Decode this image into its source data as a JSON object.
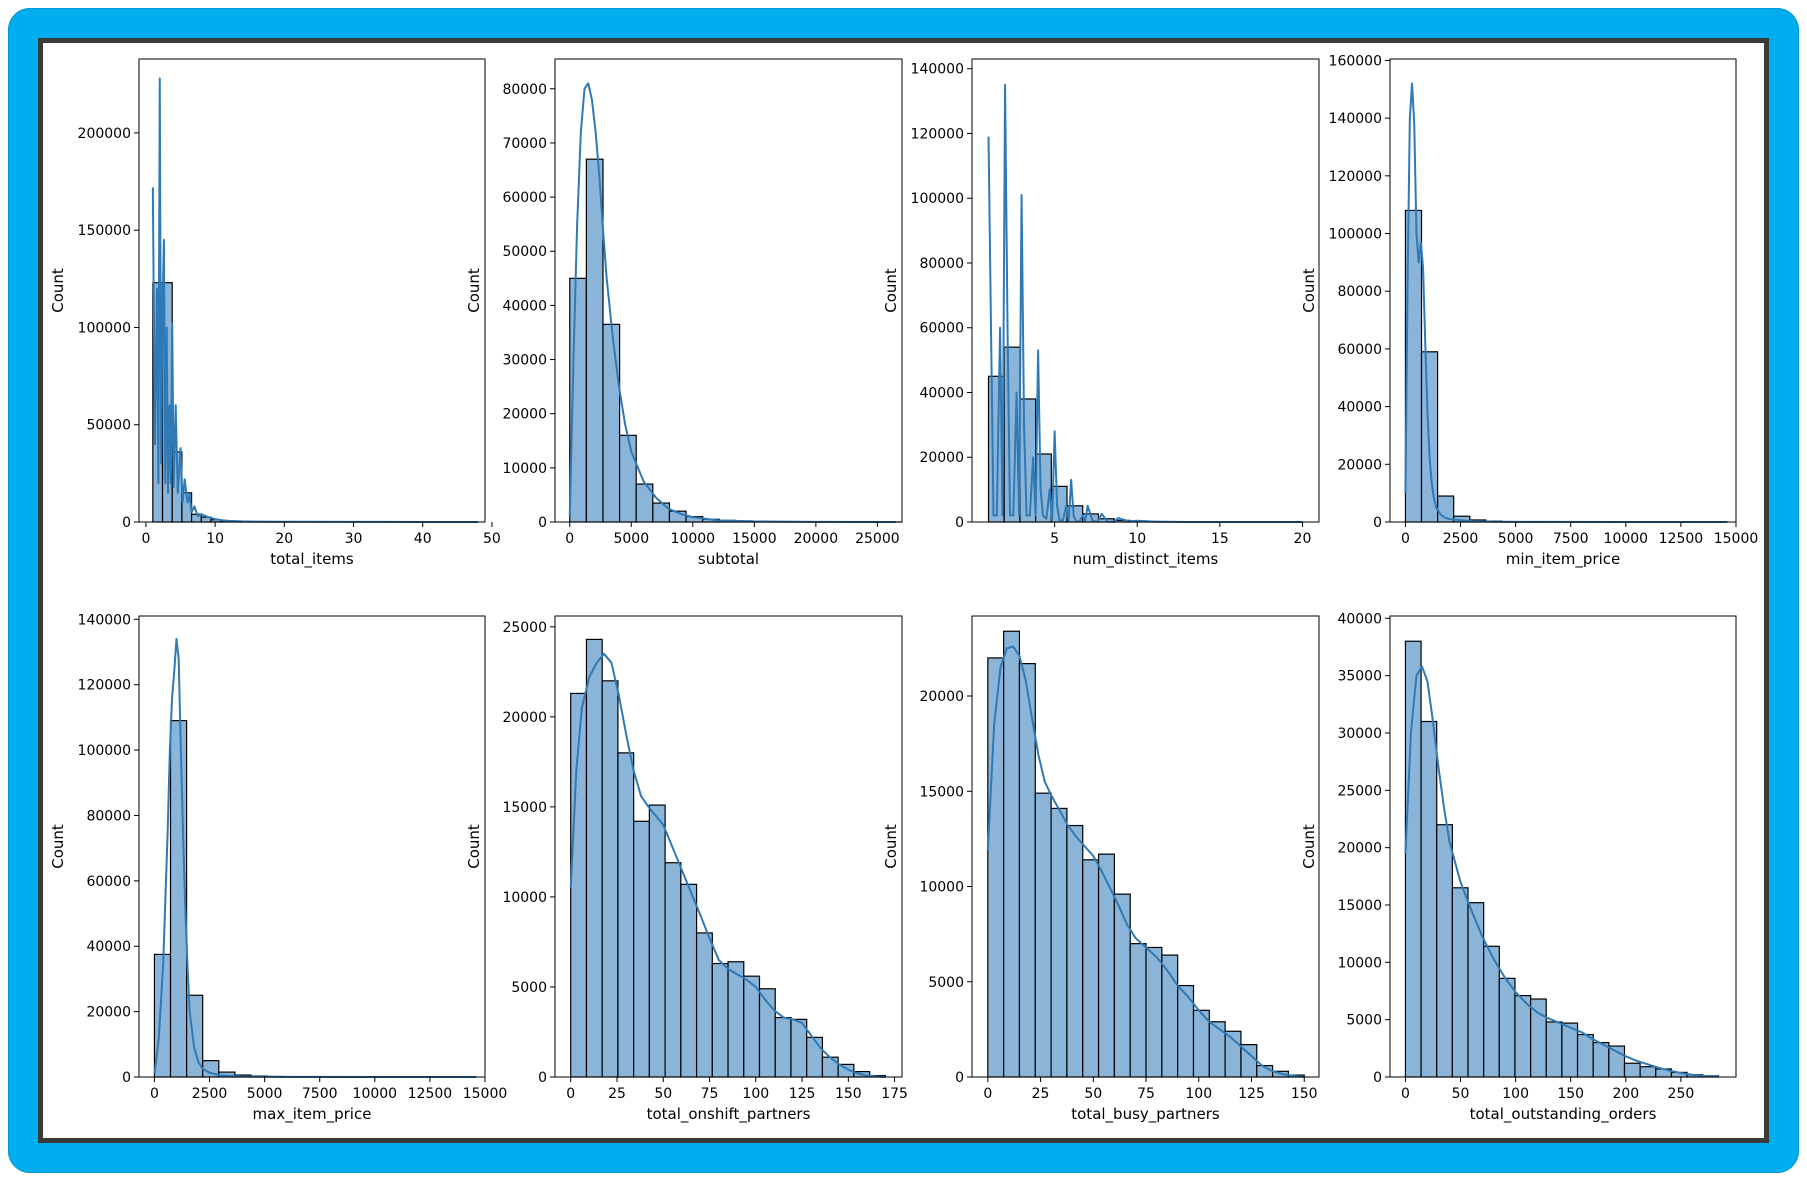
{
  "colors": {
    "frame": "#00aeef",
    "bar_fill": "#8bb5d8",
    "bar_edge": "#000000",
    "kde_line": "#2f79b5"
  },
  "chart_data": [
    {
      "type": "bar",
      "subtype": "histogram+kde",
      "xlabel": "total_items",
      "ylabel": "Count",
      "xlim": [
        -1,
        49
      ],
      "ylim": [
        0,
        238000
      ],
      "xticks": [
        0,
        10,
        20,
        30,
        40,
        50
      ],
      "yticks": [
        0,
        50000,
        100000,
        150000,
        200000
      ],
      "bin_edges": [
        1,
        2.4,
        3.8,
        5.2,
        6.6,
        8,
        9.4,
        10.8,
        12.2,
        13.6,
        15,
        16.4,
        17.8,
        19.2,
        20.6,
        22
      ],
      "counts": [
        123000,
        123000,
        36000,
        15000,
        4000,
        2500,
        1200,
        600,
        300,
        200,
        100,
        80,
        60,
        40,
        20
      ],
      "kde_x": [
        1,
        1.3,
        1.6,
        1.8,
        2,
        2.2,
        2.4,
        2.6,
        2.8,
        3,
        3.2,
        3.4,
        3.6,
        3.8,
        4,
        4.3,
        4.6,
        5,
        5.3,
        5.6,
        6,
        6.3,
        6.6,
        7,
        7.5,
        8,
        9,
        10,
        11,
        12,
        14,
        16,
        20,
        30,
        40,
        48
      ],
      "kde_y": [
        172000,
        40000,
        120000,
        20000,
        228000,
        30000,
        110000,
        145000,
        20000,
        100000,
        15000,
        60000,
        20000,
        102000,
        18000,
        60000,
        15000,
        38000,
        10000,
        22000,
        10000,
        14000,
        5000,
        8000,
        3000,
        4000,
        2500,
        1500,
        900,
        600,
        300,
        200,
        100,
        50,
        20,
        0
      ]
    },
    {
      "type": "bar",
      "subtype": "histogram+kde",
      "xlabel": "subtotal",
      "ylabel": "Count",
      "xlim": [
        -1200,
        27000
      ],
      "ylim": [
        0,
        85500
      ],
      "xticks": [
        0,
        5000,
        10000,
        15000,
        20000,
        25000
      ],
      "yticks": [
        0,
        10000,
        20000,
        30000,
        40000,
        50000,
        60000,
        70000,
        80000
      ],
      "bin_edges": [
        0,
        1350,
        2700,
        4050,
        5400,
        6750,
        8100,
        9450,
        10800,
        12150,
        13500,
        14850,
        16200,
        17550,
        18900,
        20250,
        21600,
        22950,
        24300,
        25650,
        27000
      ],
      "counts": [
        45000,
        67000,
        36500,
        16000,
        7000,
        3500,
        2000,
        1000,
        500,
        300,
        200,
        100,
        80,
        60,
        40,
        30,
        20,
        10,
        10,
        5
      ],
      "kde_x": [
        0,
        300,
        600,
        900,
        1200,
        1500,
        1800,
        2100,
        2400,
        2700,
        3000,
        3500,
        4000,
        4500,
        5000,
        6000,
        7000,
        8000,
        9000,
        10000,
        12000,
        15000,
        20000,
        26500
      ],
      "kde_y": [
        1000,
        30000,
        55000,
        72000,
        80000,
        81000,
        78000,
        72000,
        64000,
        54000,
        45000,
        34000,
        25000,
        18000,
        13000,
        7500,
        4500,
        2500,
        1500,
        900,
        300,
        100,
        20,
        0
      ]
    },
    {
      "type": "bar",
      "subtype": "histogram+kde",
      "xlabel": "num_distinct_items",
      "ylabel": "Count",
      "xlim": [
        0,
        21
      ],
      "ylim": [
        0,
        143000
      ],
      "xticks": [
        5,
        10,
        15,
        20
      ],
      "yticks": [
        0,
        20000,
        40000,
        60000,
        80000,
        100000,
        120000,
        140000
      ],
      "bin_edges": [
        1,
        1.95,
        2.9,
        3.85,
        4.8,
        5.75,
        6.7,
        7.65,
        8.6,
        9.55,
        10.5,
        11.45,
        12.4,
        13.35,
        14.3,
        15.25,
        16.2,
        17.15,
        18.1,
        19.05,
        20
      ],
      "counts": [
        45000,
        54000,
        38000,
        21000,
        11000,
        5000,
        2500,
        1000,
        500,
        300,
        150,
        100,
        50,
        30,
        20,
        10,
        10,
        5,
        5,
        5
      ],
      "kde_x": [
        1,
        1.15,
        1.3,
        1.5,
        1.7,
        1.85,
        2,
        2.15,
        2.3,
        2.5,
        2.7,
        2.85,
        3,
        3.15,
        3.3,
        3.5,
        3.7,
        3.85,
        4,
        4.15,
        4.3,
        4.5,
        4.7,
        4.85,
        5,
        5.15,
        5.3,
        5.5,
        5.7,
        5.85,
        6,
        6.15,
        6.3,
        6.5,
        6.7,
        6.85,
        7,
        7.3,
        7.6,
        7.85,
        8.2,
        8.6,
        8.85,
        9.5,
        10,
        11,
        13,
        20
      ],
      "kde_y": [
        119000,
        60000,
        2000,
        2000,
        60000,
        2000,
        135000,
        60000,
        2000,
        2000,
        40000,
        2000,
        101000,
        30000,
        2000,
        2000,
        20000,
        2000,
        53000,
        10000,
        2000,
        1000,
        10000,
        500,
        28000,
        5000,
        500,
        500,
        5000,
        300,
        13000,
        2000,
        200,
        200,
        2000,
        200,
        5000,
        300,
        100,
        2500,
        100,
        50,
        1200,
        200,
        400,
        100,
        20,
        0
      ]
    },
    {
      "type": "bar",
      "subtype": "histogram+kde",
      "xlabel": "min_item_price",
      "ylabel": "Count",
      "xlim": [
        -700,
        15000
      ],
      "ylim": [
        0,
        160500
      ],
      "xticks": [
        0,
        2500,
        5000,
        7500,
        10000,
        12500,
        15000
      ],
      "yticks": [
        0,
        20000,
        40000,
        60000,
        80000,
        100000,
        120000,
        140000,
        160000
      ],
      "bin_edges": [
        0,
        730,
        1460,
        2190,
        2920,
        3650,
        4380,
        5110,
        5840,
        6570,
        7300,
        8030,
        8760,
        9490,
        10220,
        10950,
        11680,
        12410,
        13140,
        13870,
        14600
      ],
      "counts": [
        108000,
        59000,
        9000,
        2000,
        700,
        300,
        150,
        80,
        50,
        30,
        20,
        10,
        10,
        5,
        5,
        5,
        5,
        5,
        5,
        5
      ],
      "kde_x": [
        0,
        100,
        200,
        300,
        400,
        500,
        600,
        700,
        800,
        900,
        1000,
        1100,
        1200,
        1300,
        1400,
        1600,
        1800,
        2000,
        2500,
        3000,
        4000,
        6000,
        10000,
        14600
      ],
      "kde_y": [
        10000,
        85000,
        140000,
        152000,
        138000,
        100000,
        90000,
        97000,
        88000,
        62000,
        38000,
        22000,
        13000,
        8000,
        5000,
        2500,
        1500,
        1000,
        600,
        300,
        100,
        30,
        10,
        0
      ]
    },
    {
      "type": "bar",
      "subtype": "histogram+kde",
      "xlabel": "max_item_price",
      "ylabel": "Count",
      "xlim": [
        -700,
        15000
      ],
      "ylim": [
        0,
        141000
      ],
      "xticks": [
        0,
        2500,
        5000,
        7500,
        10000,
        12500,
        15000
      ],
      "yticks": [
        0,
        20000,
        40000,
        60000,
        80000,
        100000,
        120000,
        140000
      ],
      "bin_edges": [
        0,
        730,
        1460,
        2190,
        2920,
        3650,
        4380,
        5110,
        5840,
        6570,
        7300,
        8030,
        8760,
        9490,
        10220,
        10950,
        11680,
        12410,
        13140,
        13870,
        14600
      ],
      "counts": [
        37500,
        109000,
        25000,
        5000,
        1500,
        600,
        300,
        150,
        80,
        50,
        30,
        20,
        10,
        10,
        5,
        5,
        5,
        5,
        5,
        5
      ],
      "kde_x": [
        0,
        200,
        400,
        600,
        700,
        800,
        900,
        1000,
        1100,
        1200,
        1300,
        1400,
        1500,
        1600,
        1800,
        2000,
        2200,
        2500,
        3000,
        4000,
        6000,
        10000,
        14600
      ],
      "kde_y": [
        1000,
        12000,
        35000,
        75000,
        100000,
        116000,
        124000,
        134000,
        128000,
        100000,
        74000,
        52000,
        34000,
        20000,
        9000,
        4500,
        2500,
        1300,
        500,
        150,
        40,
        10,
        0
      ]
    },
    {
      "type": "bar",
      "subtype": "histogram+kde",
      "xlabel": "total_onshift_partners",
      "ylabel": "Count",
      "xlim": [
        -8.5,
        179
      ],
      "ylim": [
        0,
        25600
      ],
      "xticks": [
        0,
        25,
        50,
        75,
        100,
        125,
        150,
        175
      ],
      "yticks": [
        0,
        5000,
        10000,
        15000,
        20000,
        25000
      ],
      "bin_edges": [
        0,
        8.5,
        17,
        25.5,
        34,
        42.5,
        51,
        59.5,
        68,
        76.5,
        85,
        93.5,
        102,
        110.5,
        119,
        127.5,
        136,
        144.5,
        153,
        161.5,
        170
      ],
      "counts": [
        21300,
        24300,
        22000,
        18000,
        14200,
        15100,
        11900,
        10700,
        8000,
        6300,
        6400,
        5600,
        4900,
        3300,
        3200,
        2200,
        1100,
        700,
        300,
        80
      ],
      "kde_x": [
        0,
        3,
        6,
        10,
        14,
        18,
        22,
        26,
        30,
        34,
        38,
        42,
        46,
        50,
        54,
        58,
        62,
        66,
        70,
        75,
        80,
        85,
        90,
        95,
        100,
        105,
        110,
        115,
        120,
        125,
        130,
        135,
        140,
        145,
        150,
        155,
        160,
        165,
        170
      ],
      "kde_y": [
        10500,
        17000,
        20500,
        22200,
        23000,
        23500,
        23000,
        21200,
        19000,
        17000,
        15600,
        15000,
        14500,
        14000,
        13000,
        12000,
        11000,
        10000,
        9000,
        7700,
        6500,
        6000,
        5700,
        5400,
        5000,
        4300,
        3700,
        3300,
        3200,
        3000,
        2300,
        1600,
        1100,
        700,
        400,
        200,
        80,
        30,
        0
      ]
    },
    {
      "type": "bar",
      "subtype": "histogram+kde",
      "xlabel": "total_busy_partners",
      "ylabel": "Count",
      "xlim": [
        -7.5,
        157
      ],
      "ylim": [
        0,
        24200
      ],
      "xticks": [
        0,
        25,
        50,
        75,
        100,
        125,
        150
      ],
      "yticks": [
        0,
        5000,
        10000,
        15000,
        20000
      ],
      "bin_edges": [
        0,
        7.5,
        15,
        22.5,
        30,
        37.5,
        45,
        52.5,
        60,
        67.5,
        75,
        82.5,
        90,
        97.5,
        105,
        112.5,
        120,
        127.5,
        135,
        142.5,
        150
      ],
      "counts": [
        22000,
        23400,
        21700,
        14900,
        14100,
        13200,
        11400,
        11700,
        9600,
        7000,
        6800,
        6400,
        4800,
        3500,
        2900,
        2400,
        1700,
        600,
        300,
        100
      ],
      "kde_x": [
        0,
        3,
        6,
        9,
        12,
        15,
        18,
        21,
        24,
        27,
        30,
        34,
        38,
        42,
        46,
        50,
        54,
        58,
        62,
        66,
        70,
        75,
        80,
        85,
        90,
        95,
        100,
        105,
        110,
        115,
        120,
        125,
        130,
        135,
        140,
        145,
        150
      ],
      "kde_y": [
        11900,
        18500,
        21500,
        22500,
        22600,
        22100,
        20800,
        18800,
        16900,
        15500,
        14800,
        14000,
        13200,
        12600,
        12100,
        11600,
        10800,
        9900,
        9000,
        8000,
        7300,
        6800,
        6300,
        5600,
        4800,
        4200,
        3500,
        2900,
        2500,
        2100,
        1600,
        1100,
        600,
        300,
        150,
        60,
        0
      ]
    },
    {
      "type": "bar",
      "subtype": "histogram+kde",
      "xlabel": "total_outstanding_orders",
      "ylabel": "Count",
      "xlim": [
        -14,
        300
      ],
      "ylim": [
        0,
        40200
      ],
      "xticks": [
        0,
        50,
        100,
        150,
        200,
        250
      ],
      "yticks": [
        0,
        5000,
        10000,
        15000,
        20000,
        25000,
        30000,
        35000,
        40000
      ],
      "bin_edges": [
        0,
        14.2,
        28.4,
        42.6,
        56.8,
        71,
        85.2,
        99.4,
        113.6,
        127.8,
        142,
        156.2,
        170.4,
        184.6,
        198.8,
        213,
        227.2,
        241.4,
        255.6,
        269.8,
        284
      ],
      "counts": [
        38000,
        31000,
        22000,
        16500,
        15200,
        11400,
        8600,
        7100,
        6800,
        4800,
        4700,
        3700,
        3000,
        2700,
        1200,
        900,
        700,
        400,
        200,
        100
      ],
      "kde_x": [
        0,
        5,
        10,
        15,
        20,
        25,
        30,
        35,
        40,
        50,
        60,
        70,
        80,
        90,
        100,
        110,
        120,
        130,
        140,
        150,
        160,
        170,
        180,
        190,
        200,
        210,
        220,
        230,
        240,
        250,
        260,
        270,
        284
      ],
      "kde_y": [
        19500,
        30000,
        35000,
        35800,
        34500,
        31000,
        27000,
        23500,
        20500,
        17000,
        14500,
        12200,
        10300,
        8700,
        7400,
        6400,
        5600,
        5100,
        4700,
        4300,
        3900,
        3300,
        2800,
        2300,
        1800,
        1400,
        1100,
        800,
        550,
        350,
        200,
        100,
        30
      ]
    }
  ]
}
